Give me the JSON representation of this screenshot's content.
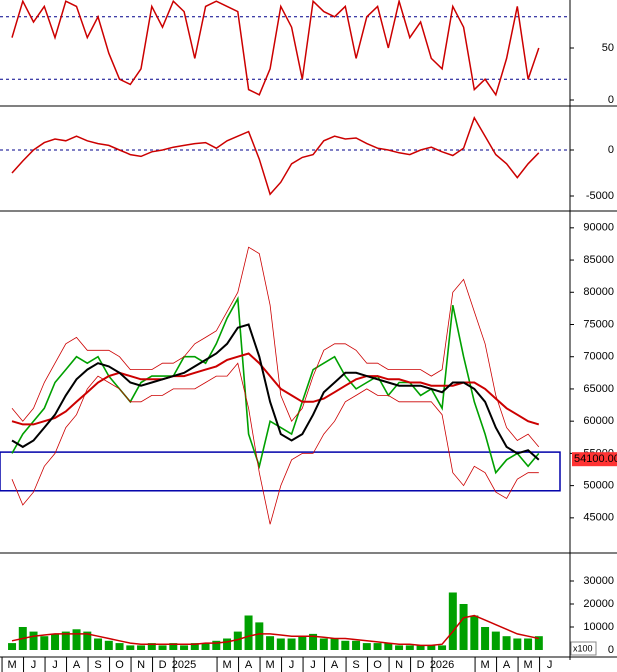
{
  "chart_data": [
    {
      "type": "line",
      "x": [
        0,
        0.5,
        1,
        1.5,
        2,
        2.5,
        3,
        3.5,
        4,
        4.5,
        5,
        5.5,
        6,
        6.5,
        7,
        7.5,
        8,
        8.5,
        9,
        9.5,
        10,
        10.5,
        11,
        11.5,
        12,
        12.5,
        13,
        13.5,
        14,
        14.5,
        15,
        15.5,
        16,
        16.5,
        17,
        17.5,
        18,
        18.5,
        19,
        19.5,
        20,
        20.5,
        21,
        21.5,
        22,
        22.5,
        23,
        23.5,
        24,
        24.5
      ],
      "xlim": [
        -0.56,
        25.95
      ],
      "ylim": [
        0,
        100
      ],
      "yticks": [
        0,
        50
      ],
      "levels": [
        80,
        20
      ],
      "level_color": "#00008b",
      "series": [
        {
          "color": "#cc0000",
          "values": [
            60,
            95,
            75,
            90,
            60,
            95,
            90,
            60,
            80,
            45,
            20,
            15,
            30,
            90,
            70,
            95,
            85,
            40,
            90,
            95,
            90,
            85,
            10,
            5,
            30,
            90,
            70,
            20,
            95,
            85,
            80,
            90,
            40,
            80,
            90,
            50,
            95,
            60,
            75,
            40,
            30,
            90,
            70,
            10,
            20,
            5,
            40,
            90,
            20,
            50
          ]
        }
      ]
    },
    {
      "type": "line",
      "x": [
        0,
        0.5,
        1,
        1.5,
        2,
        2.5,
        3,
        3.5,
        4,
        4.5,
        5,
        5.5,
        6,
        6.5,
        7,
        7.5,
        8,
        8.5,
        9,
        9.5,
        10,
        10.5,
        11,
        11.5,
        12,
        12.5,
        13,
        13.5,
        14,
        14.5,
        15,
        15.5,
        16,
        16.5,
        17,
        17.5,
        18,
        18.5,
        19,
        19.5,
        20,
        20.5,
        21,
        21.5,
        22,
        22.5,
        23,
        23.5,
        24,
        24.5
      ],
      "xlim": [
        -0.56,
        25.95
      ],
      "ylim": [
        -6520,
        4130
      ],
      "yticks": [
        0,
        -5000
      ],
      "levels": [
        0
      ],
      "level_color": "#00008b",
      "series": [
        {
          "color": "#cc0000",
          "values": [
            -2500,
            -1200,
            0,
            800,
            1200,
            1000,
            1500,
            1000,
            700,
            500,
            0,
            -500,
            -700,
            -200,
            0,
            300,
            500,
            700,
            800,
            200,
            1000,
            1500,
            2000,
            -1000,
            -4800,
            -3500,
            -1500,
            -800,
            -500,
            1000,
            1500,
            1200,
            1300,
            700,
            200,
            0,
            -300,
            -500,
            0,
            300,
            -200,
            -600,
            200,
            3500,
            1500,
            -500,
            -1500,
            -3000,
            -1500,
            -300
          ]
        }
      ]
    },
    {
      "type": "line",
      "x": [
        0,
        0.5,
        1,
        1.5,
        2,
        2.5,
        3,
        3.5,
        4,
        4.5,
        5,
        5.5,
        6,
        6.5,
        7,
        7.5,
        8,
        8.5,
        9,
        9.5,
        10,
        10.5,
        11,
        11.5,
        12,
        12.5,
        13,
        13.5,
        14,
        14.5,
        15,
        15.5,
        16,
        16.5,
        17,
        17.5,
        18,
        18.5,
        19,
        19.5,
        20,
        20.5,
        21,
        21.5,
        22,
        22.5,
        23,
        23.5,
        24,
        24.5
      ],
      "xlim": [
        -0.56,
        25.95
      ],
      "ylim": [
        39700,
        92300
      ],
      "yticks": [
        45000,
        50000,
        55000,
        60000,
        65000,
        70000,
        75000,
        80000,
        85000,
        90000
      ],
      "box": {
        "ylim": [
          49200,
          55200
        ],
        "color": "#0000aa"
      },
      "last_price": {
        "value": 54100,
        "label": "54100.00"
      },
      "series": [
        {
          "color": "#00a000",
          "width": 1.6,
          "values": [
            55000,
            58000,
            60000,
            62000,
            66000,
            68000,
            70000,
            69000,
            70000,
            67000,
            65000,
            63000,
            66000,
            67000,
            67000,
            67000,
            70000,
            70000,
            69000,
            72000,
            76000,
            79000,
            58000,
            53000,
            60000,
            59000,
            58000,
            63000,
            68000,
            69000,
            70000,
            67000,
            65000,
            66000,
            67000,
            64000,
            66000,
            66000,
            64000,
            65000,
            62000,
            78000,
            70000,
            63000,
            58000,
            52000,
            54000,
            55000,
            53000,
            55000
          ]
        },
        {
          "color": "#cc0000",
          "width": 0.8,
          "values": [
            62000,
            60000,
            62000,
            66000,
            69000,
            72000,
            73000,
            71000,
            71000,
            71000,
            70000,
            68000,
            68000,
            68000,
            69000,
            69000,
            70000,
            72000,
            73000,
            74000,
            77000,
            80000,
            87000,
            86000,
            78000,
            64000,
            60000,
            62000,
            67000,
            71000,
            72000,
            72000,
            71000,
            69000,
            69000,
            68000,
            68000,
            68000,
            68000,
            67000,
            68000,
            80000,
            82000,
            77000,
            72000,
            64000,
            59000,
            57000,
            58000,
            56000
          ]
        },
        {
          "color": "#cc0000",
          "width": 0.8,
          "values": [
            51000,
            47000,
            49000,
            53000,
            55000,
            59000,
            61000,
            65000,
            67000,
            66000,
            65000,
            63000,
            63000,
            64000,
            64000,
            65000,
            65000,
            65000,
            66000,
            67000,
            67000,
            69000,
            62000,
            52000,
            44000,
            50000,
            54000,
            55000,
            55000,
            58000,
            60000,
            63000,
            64000,
            65000,
            64000,
            64000,
            63000,
            63000,
            63000,
            63000,
            61000,
            52000,
            50000,
            53000,
            52000,
            49000,
            48000,
            51000,
            52000,
            52000
          ]
        },
        {
          "color": "#cc0000",
          "width": 2,
          "values": [
            60000,
            59500,
            59500,
            60000,
            60500,
            61500,
            63000,
            64500,
            66000,
            67000,
            67500,
            67000,
            66500,
            66500,
            66500,
            67000,
            67000,
            67500,
            68000,
            68500,
            69500,
            70000,
            70500,
            69000,
            67000,
            65000,
            64000,
            63000,
            63000,
            63500,
            64500,
            65500,
            66500,
            67000,
            67000,
            66500,
            66500,
            66000,
            66000,
            65500,
            65500,
            65500,
            66000,
            66000,
            65000,
            63500,
            62000,
            61000,
            60000,
            59500
          ]
        },
        {
          "color": "#000000",
          "width": 2,
          "values": [
            57000,
            56000,
            57000,
            59000,
            61000,
            64000,
            66500,
            68000,
            69000,
            68500,
            67500,
            66000,
            65500,
            66000,
            66500,
            67000,
            67500,
            68500,
            69500,
            70500,
            72000,
            74500,
            75000,
            70000,
            63000,
            58000,
            57000,
            58000,
            61000,
            64500,
            66000,
            67500,
            67500,
            67000,
            66500,
            66000,
            65500,
            65500,
            65500,
            65000,
            64500,
            66000,
            66000,
            65000,
            63000,
            59000,
            56000,
            55000,
            55500,
            54000
          ]
        }
      ]
    },
    {
      "type": "bar",
      "x": [
        0,
        0.5,
        1,
        1.5,
        2,
        2.5,
        3,
        3.5,
        4,
        4.5,
        5,
        5.5,
        6,
        6.5,
        7,
        7.5,
        8,
        8.5,
        9,
        9.5,
        10,
        10.5,
        11,
        11.5,
        12,
        12.5,
        13,
        13.5,
        14,
        14.5,
        15,
        15.5,
        16,
        16.5,
        17,
        17.5,
        18,
        18.5,
        19,
        19.5,
        20,
        20.5,
        21,
        21.5,
        22,
        22.5,
        23,
        23.5,
        24,
        24.5
      ],
      "xlim": [
        -0.56,
        25.95
      ],
      "ylim": [
        -4350,
        41300
      ],
      "yticks": [
        0,
        10000,
        20000,
        30000
      ],
      "unit_label": "x100",
      "xticks": [
        {
          "value": 0,
          "label": "M"
        },
        {
          "value": 1,
          "label": "J"
        },
        {
          "value": 2,
          "label": "J"
        },
        {
          "value": 3,
          "label": "A"
        },
        {
          "value": 4,
          "label": "S"
        },
        {
          "value": 5,
          "label": "O"
        },
        {
          "value": 6,
          "label": "N"
        },
        {
          "value": 7,
          "label": "D"
        },
        {
          "value": 8,
          "label": "2025"
        },
        {
          "value": 10,
          "label": "M"
        },
        {
          "value": 11,
          "label": "A"
        },
        {
          "value": 12,
          "label": "M"
        },
        {
          "value": 13,
          "label": "J"
        },
        {
          "value": 14,
          "label": "J"
        },
        {
          "value": 15,
          "label": "A"
        },
        {
          "value": 16,
          "label": "S"
        },
        {
          "value": 17,
          "label": "O"
        },
        {
          "value": 18,
          "label": "N"
        },
        {
          "value": 19,
          "label": "D"
        },
        {
          "value": 20,
          "label": "2026"
        },
        {
          "value": 22,
          "label": "M"
        },
        {
          "value": 23,
          "label": "A"
        },
        {
          "value": 24,
          "label": "M"
        },
        {
          "value": 25,
          "label": "J"
        }
      ],
      "series": [
        {
          "color": "#00a000",
          "values": [
            3000,
            10000,
            8000,
            6000,
            7000,
            8000,
            9000,
            8000,
            5000,
            4000,
            3000,
            2000,
            2000,
            3000,
            2000,
            3000,
            2000,
            3000,
            3000,
            4000,
            5000,
            8000,
            15000,
            12000,
            6000,
            5000,
            5000,
            6000,
            7000,
            5000,
            5000,
            4000,
            4000,
            3000,
            3000,
            3000,
            2000,
            2000,
            2000,
            2000,
            2000,
            25000,
            20000,
            15000,
            10000,
            8000,
            6000,
            5000,
            5000,
            6000
          ]
        },
        {
          "color": "#cc0000",
          "line": true,
          "values": [
            4000,
            5000,
            6000,
            6500,
            7000,
            7000,
            7000,
            7000,
            6000,
            5000,
            4000,
            3000,
            2500,
            2500,
            2500,
            2500,
            2500,
            2500,
            3000,
            3000,
            3500,
            4500,
            6000,
            7000,
            7000,
            6500,
            6000,
            6000,
            6000,
            5500,
            5000,
            5000,
            4500,
            4000,
            3500,
            3000,
            2500,
            2500,
            2000,
            2000,
            2500,
            8000,
            14000,
            15000,
            13000,
            11000,
            9000,
            7000,
            6000,
            5000
          ]
        }
      ]
    }
  ]
}
